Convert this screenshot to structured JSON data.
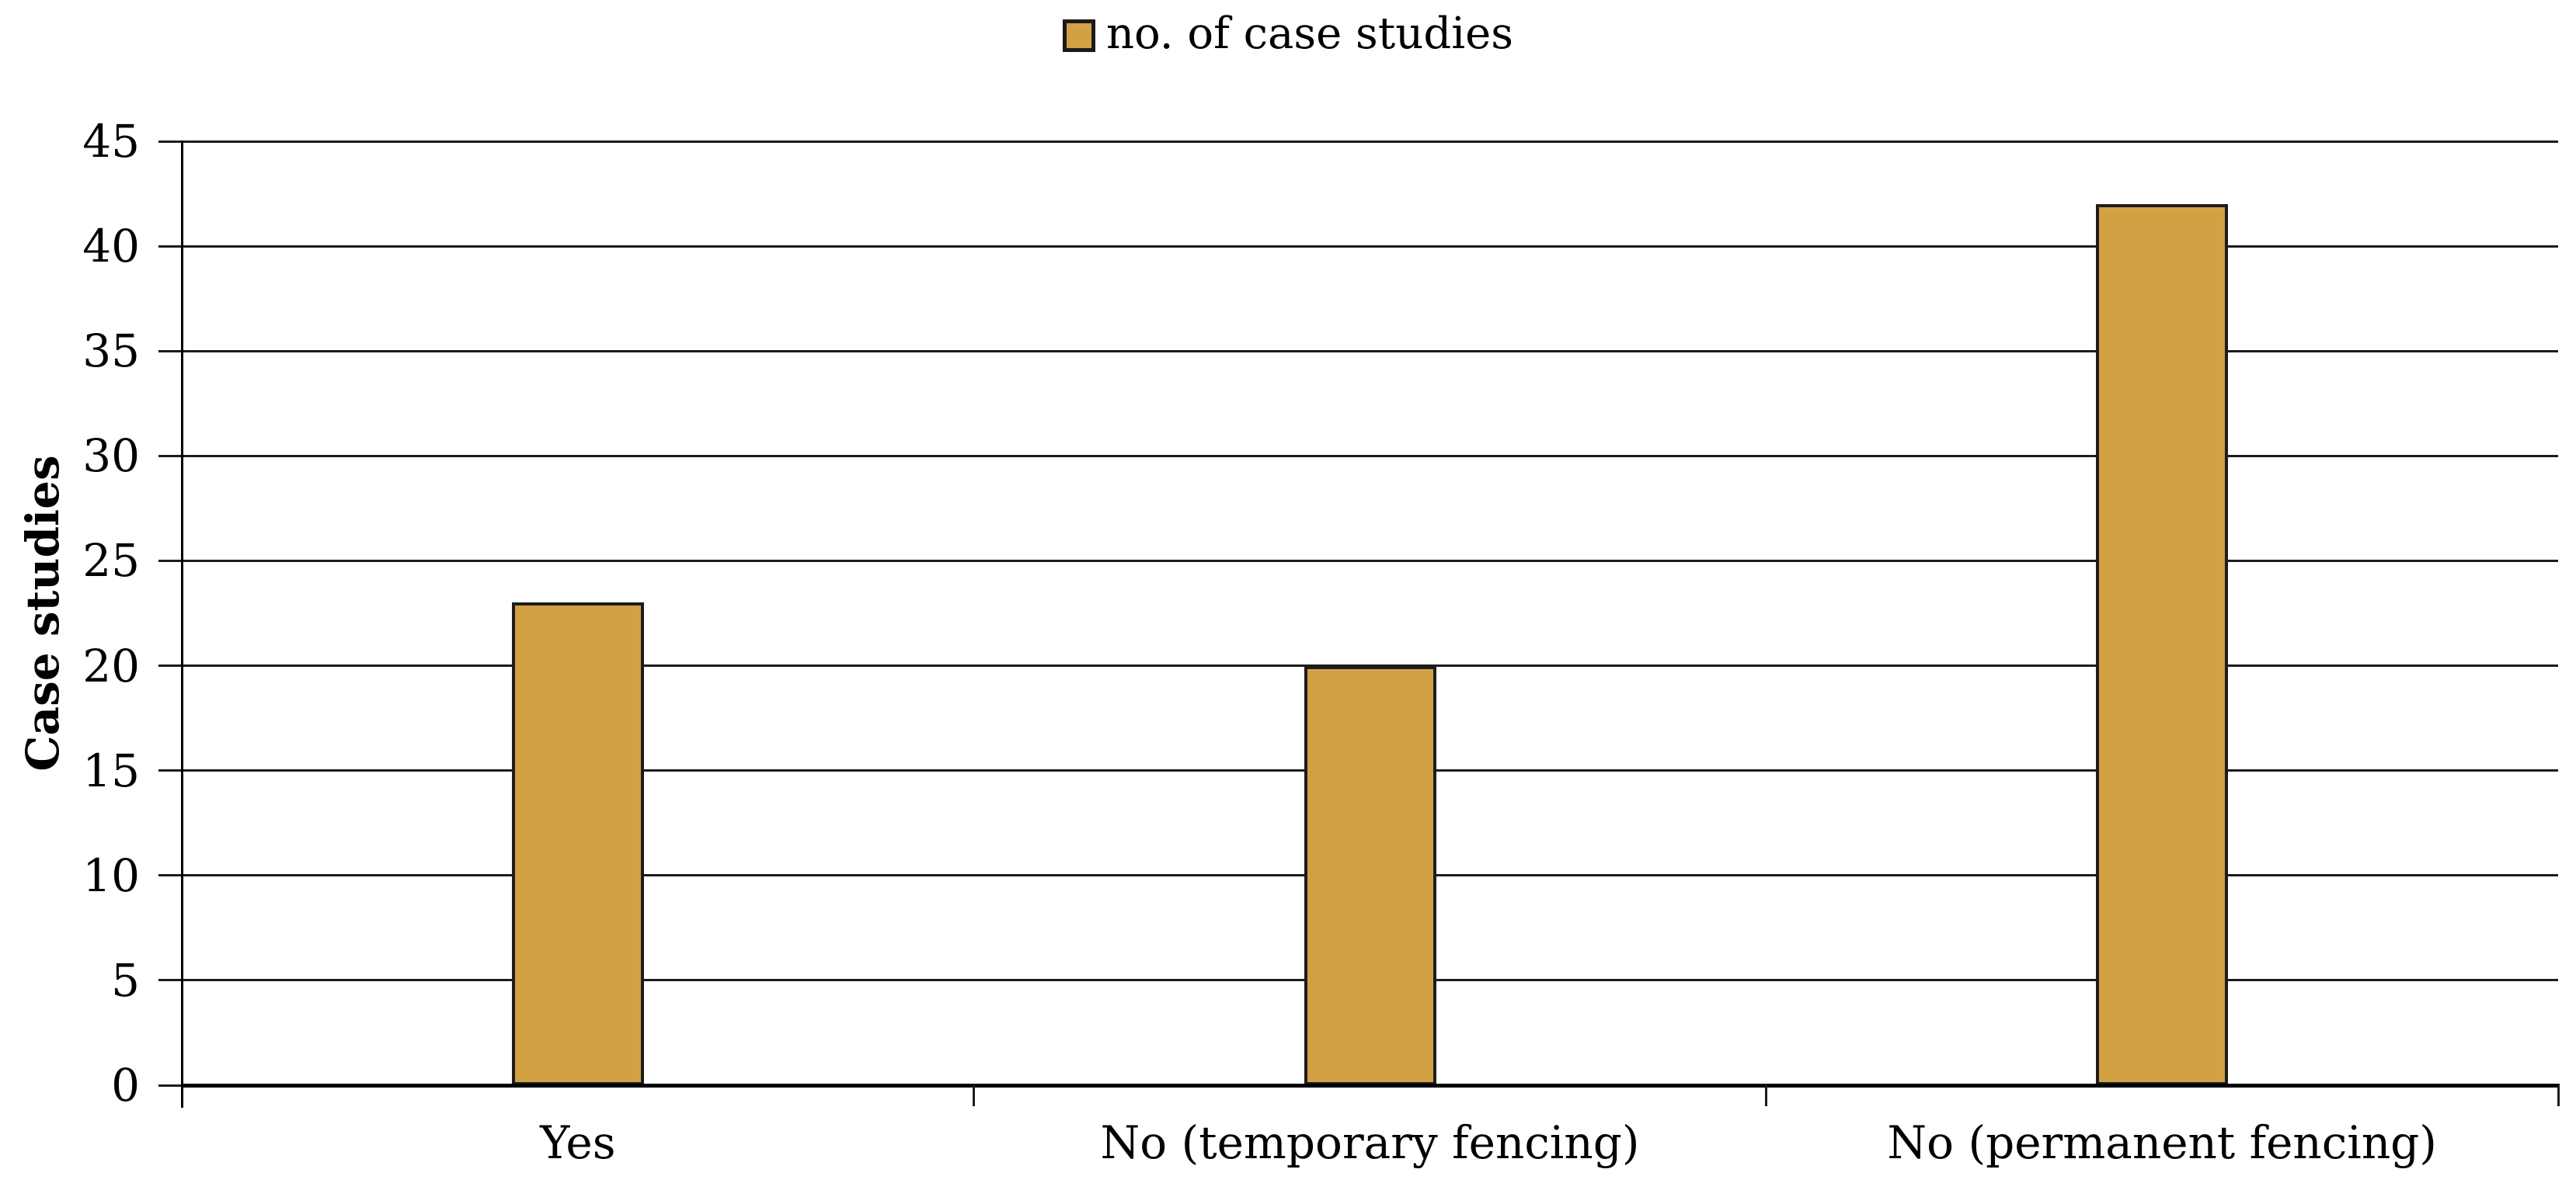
{
  "legend": {
    "label": "no. of case studies",
    "position": "top-center"
  },
  "colors": {
    "bar_fill": "#D1A144",
    "bar_border": "#1C1C1C",
    "axis": "#000000",
    "grid": "#1C1C1C",
    "text": "#000000",
    "background": "#FFFFFF"
  },
  "chart_data": {
    "type": "bar",
    "title": "",
    "categories": [
      "Yes",
      "No (temporary fencing)",
      "No (permanent fencing)"
    ],
    "series": [
      {
        "name": "no. of case studies",
        "values": [
          23,
          20,
          42
        ]
      }
    ],
    "xlabel": "",
    "ylabel": "Case studies",
    "ylim": [
      0,
      45
    ],
    "yticks": [
      0,
      5,
      10,
      15,
      20,
      25,
      30,
      35,
      40,
      45
    ],
    "grid": "horizontal",
    "gridlines_on": true,
    "legend_position": "top-center",
    "bar_color": "#D1A144",
    "bar_border_color": "#1C1C1C"
  }
}
